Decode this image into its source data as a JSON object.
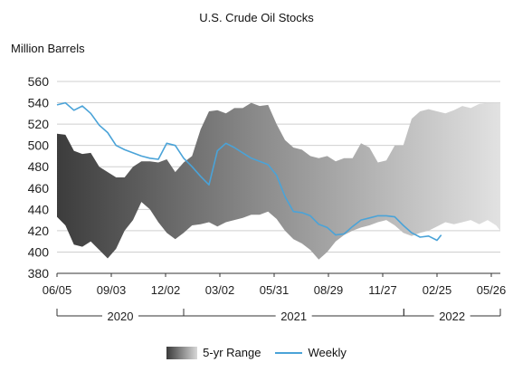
{
  "chart_data": {
    "type": "area",
    "title": "U.S. Crude Oil Stocks",
    "ylabel": "Million Barrels",
    "xlabel": "",
    "ylim": [
      380,
      560
    ],
    "yticks": [
      380,
      400,
      420,
      440,
      460,
      480,
      500,
      520,
      540,
      560
    ],
    "x_tick_labels": [
      "06/05",
      "09/03",
      "12/02",
      "03/02",
      "05/31",
      "08/29",
      "11/27",
      "02/25",
      "05/26"
    ],
    "x_tick_dates": [
      "2020-06-05",
      "2020-09-03",
      "2020-12-02",
      "2021-03-02",
      "2021-05-31",
      "2021-08-29",
      "2021-11-27",
      "2022-02-25",
      "2022-05-26"
    ],
    "x_range": [
      "2020-06-05",
      "2022-06-10"
    ],
    "years": [
      {
        "label": "2020",
        "start": "2020-06-05",
        "end": "2021-01-01"
      },
      {
        "label": "2021",
        "start": "2021-01-01",
        "end": "2022-01-01"
      },
      {
        "label": "2022",
        "start": "2022-01-01",
        "end": "2022-06-10"
      }
    ],
    "grid": true,
    "legend_position": "bottom",
    "legend": [
      "5-yr Range",
      "Weekly"
    ],
    "series": [
      {
        "name": "5-yr Range",
        "kind": "band",
        "dates": [
          "2020-06-05",
          "2020-06-19",
          "2020-07-03",
          "2020-07-17",
          "2020-07-31",
          "2020-08-14",
          "2020-08-28",
          "2020-09-11",
          "2020-09-25",
          "2020-10-09",
          "2020-10-23",
          "2020-11-06",
          "2020-11-20",
          "2020-12-04",
          "2020-12-18",
          "2021-01-01",
          "2021-01-15",
          "2021-01-29",
          "2021-02-12",
          "2021-02-26",
          "2021-03-12",
          "2021-03-26",
          "2021-04-09",
          "2021-04-23",
          "2021-05-07",
          "2021-05-21",
          "2021-06-04",
          "2021-06-18",
          "2021-07-02",
          "2021-07-16",
          "2021-07-30",
          "2021-08-13",
          "2021-08-27",
          "2021-09-10",
          "2021-09-24",
          "2021-10-08",
          "2021-10-22",
          "2021-11-05",
          "2021-11-19",
          "2021-12-03",
          "2021-12-17",
          "2021-12-31",
          "2022-01-14",
          "2022-01-28",
          "2022-02-11",
          "2022-02-25",
          "2022-03-11",
          "2022-03-25",
          "2022-04-08",
          "2022-04-22",
          "2022-05-06",
          "2022-05-20",
          "2022-06-03",
          "2022-06-10"
        ],
        "high": [
          511,
          510,
          495,
          492,
          493,
          480,
          475,
          470,
          470,
          480,
          485,
          485,
          484,
          487,
          475,
          484,
          490,
          515,
          532,
          533,
          530,
          535,
          535,
          540,
          537,
          538,
          520,
          505,
          498,
          496,
          490,
          488,
          490,
          485,
          488,
          488,
          502,
          498,
          484,
          486,
          500,
          500,
          525,
          532,
          534,
          532,
          530,
          533,
          537,
          535,
          539,
          540,
          540,
          540
        ],
        "low": [
          433,
          425,
          407,
          405,
          410,
          402,
          394,
          403,
          420,
          430,
          447,
          440,
          428,
          418,
          412,
          418,
          425,
          426,
          428,
          424,
          428,
          430,
          432,
          435,
          435,
          438,
          431,
          420,
          412,
          408,
          402,
          393,
          400,
          410,
          416,
          420,
          423,
          425,
          428,
          430,
          425,
          418,
          415,
          418,
          420,
          424,
          428,
          426,
          428,
          430,
          426,
          430,
          425,
          420
        ]
      },
      {
        "name": "Weekly",
        "kind": "line",
        "color": "#4aa3d8",
        "dates": [
          "2020-06-05",
          "2020-06-19",
          "2020-07-03",
          "2020-07-17",
          "2020-07-31",
          "2020-08-14",
          "2020-08-28",
          "2020-09-11",
          "2020-09-25",
          "2020-10-09",
          "2020-10-23",
          "2020-11-06",
          "2020-11-20",
          "2020-12-04",
          "2020-12-18",
          "2021-01-01",
          "2021-01-15",
          "2021-01-29",
          "2021-02-12",
          "2021-02-26",
          "2021-03-12",
          "2021-03-26",
          "2021-04-09",
          "2021-04-23",
          "2021-05-07",
          "2021-05-21",
          "2021-06-04",
          "2021-06-18",
          "2021-07-02",
          "2021-07-16",
          "2021-07-30",
          "2021-08-13",
          "2021-08-27",
          "2021-09-10",
          "2021-09-24",
          "2021-10-08",
          "2021-10-22",
          "2021-11-05",
          "2021-11-19",
          "2021-12-03",
          "2021-12-17",
          "2021-12-31",
          "2022-01-14",
          "2022-01-28",
          "2022-02-11",
          "2022-02-25",
          "2022-03-04"
        ],
        "values": [
          538,
          540,
          533,
          537,
          530,
          519,
          512,
          500,
          496,
          493,
          490,
          488,
          487,
          502,
          500,
          488,
          480,
          471,
          463,
          495,
          502,
          498,
          493,
          488,
          485,
          482,
          472,
          452,
          438,
          437,
          434,
          426,
          423,
          416,
          417,
          424,
          430,
          432,
          434,
          434,
          433,
          425,
          418,
          414,
          415,
          411,
          416
        ]
      }
    ]
  }
}
